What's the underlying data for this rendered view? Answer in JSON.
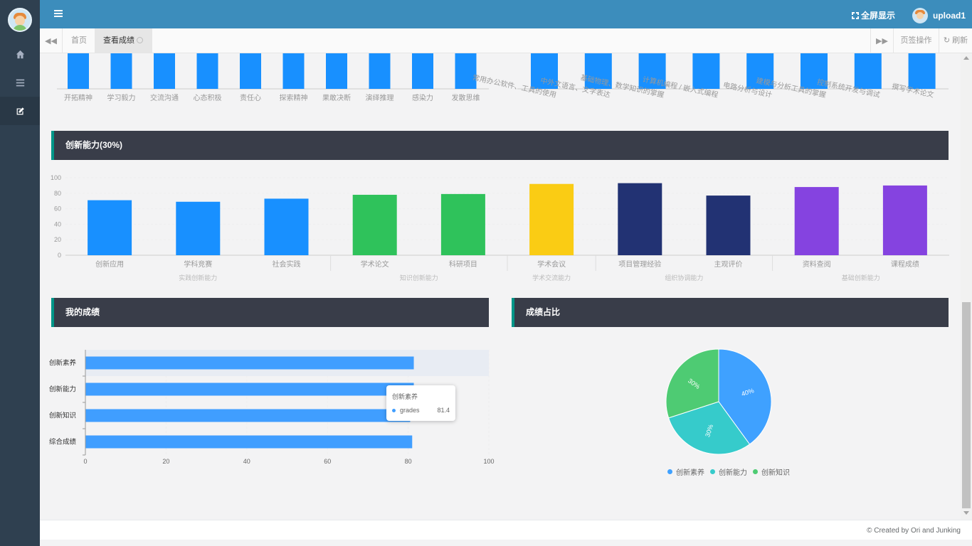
{
  "header": {
    "fullscreen_label": "全屏显示",
    "username": "upload1"
  },
  "tabs": {
    "home_label": "首页",
    "active_label": "查看成绩",
    "ops_label": "页签操作",
    "refresh_label": "刷新"
  },
  "sections": {
    "innovation_title": "创新能力(30%)",
    "my_grades_title": "我的成绩",
    "ratio_title": "成绩占比"
  },
  "footer": {
    "text": "© Created by Ori and Junking"
  },
  "tooltip": {
    "title": "创新素养",
    "series": "grades",
    "value": "81.4"
  },
  "colors": {
    "header": "#3c8dbc",
    "sidebar": "#2f4050",
    "panel": "#393d49",
    "accent": "#009688",
    "blue": "#1890ff",
    "green": "#2fc25b",
    "yellow": "#facc14",
    "navy": "#223273",
    "purple": "#8543e0"
  },
  "chart_data": [
    {
      "type": "bar",
      "categories": [
        "开拓精神",
        "学习毅力",
        "交流沟通",
        "心态积极",
        "责任心",
        "探索精神",
        "果敢决断",
        "演绎推理",
        "感染力",
        "发散思维"
      ],
      "color": "#1890ff"
    },
    {
      "type": "bar",
      "categories": [
        "常用办公软件、工具的使用",
        "中外文语言、文字表达",
        "基础物理、数学知识的掌握",
        "计算机编程 / 嵌入式编程",
        "电路分析与设计",
        "建模与分析工具的掌握",
        "控制系统开发与调试",
        "撰写学术论文"
      ],
      "color": "#1890ff"
    },
    {
      "type": "bar",
      "title": "创新能力(30%)",
      "ylim": [
        0,
        100
      ],
      "yticks": [
        0,
        20,
        40,
        60,
        80,
        100
      ],
      "categories": [
        "创新应用",
        "学科竞赛",
        "社会实践",
        "学术论文",
        "科研项目",
        "学术会议",
        "项目管理经验",
        "主观评价",
        "资料查阅",
        "课程成绩"
      ],
      "values": [
        71,
        69,
        73,
        78,
        79,
        92,
        93,
        77,
        88,
        90
      ],
      "colors": [
        "#1890ff",
        "#1890ff",
        "#1890ff",
        "#2fc25b",
        "#2fc25b",
        "#facc14",
        "#223273",
        "#223273",
        "#8543e0",
        "#8543e0"
      ],
      "groups": [
        {
          "label": "实践创新能力",
          "span": 3
        },
        {
          "label": "知识创新能力",
          "span": 2
        },
        {
          "label": "学术交流能力",
          "span": 1
        },
        {
          "label": "组织协调能力",
          "span": 2
        },
        {
          "label": "基础创新能力",
          "span": 2
        }
      ]
    },
    {
      "type": "bar",
      "orientation": "horizontal",
      "title": "我的成绩",
      "categories": [
        "创新素养",
        "创新能力",
        "创新知识",
        "综合成绩"
      ],
      "series": [
        {
          "name": "grades",
          "values": [
            81.4,
            81.4,
            80.5,
            81.0
          ]
        }
      ],
      "xlim": [
        0,
        100
      ],
      "xticks": [
        0,
        20,
        40,
        60,
        80,
        100
      ],
      "color": "#409eff",
      "highlighted": "创新素养"
    },
    {
      "type": "pie",
      "title": "成绩占比",
      "labels": [
        "创新素养",
        "创新能力",
        "创新知识"
      ],
      "values": [
        40,
        30,
        30
      ],
      "value_labels": [
        "40%",
        "30%",
        "30%"
      ],
      "colors": [
        "#3fa1ff",
        "#36cbcb",
        "#4ecb73"
      ]
    }
  ]
}
